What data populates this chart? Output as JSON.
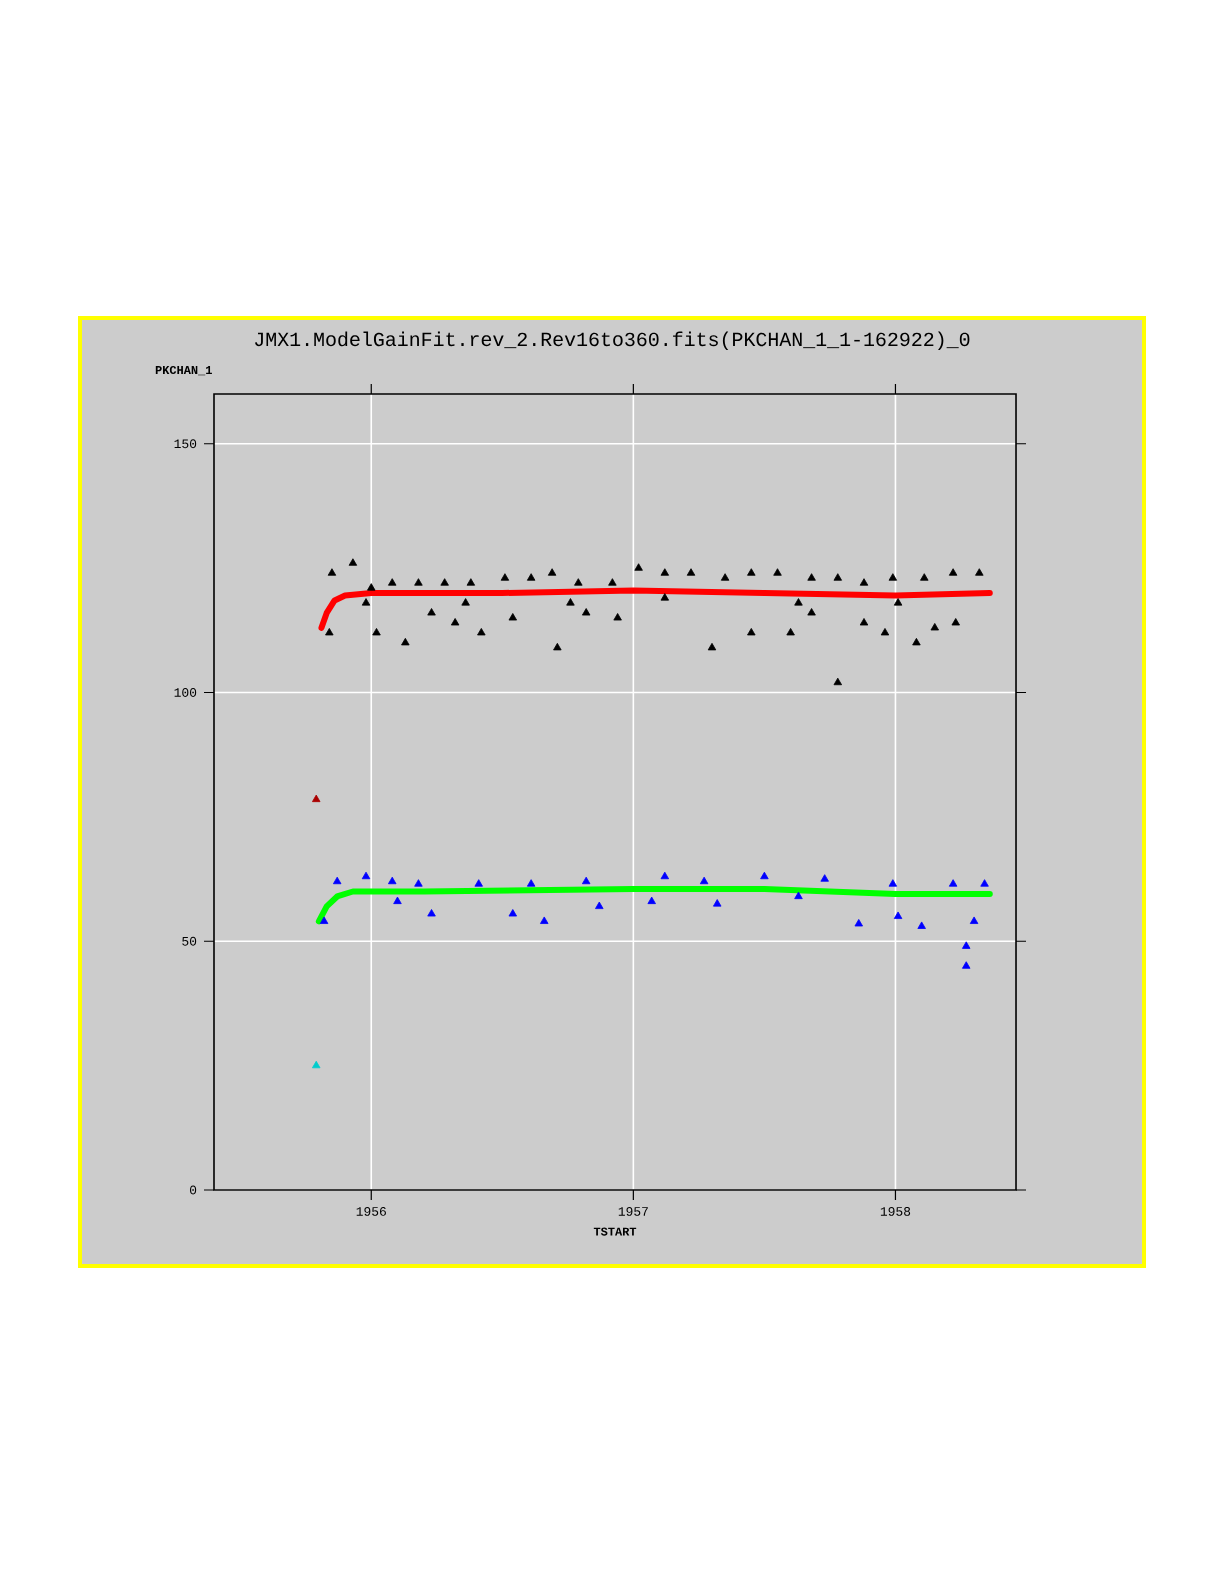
{
  "chart_data": {
    "type": "scatter",
    "title": "JMX1.ModelGainFit.rev_2.Rev16to360.fits(PKCHAN_1_1-162922)_0",
    "xlabel": "TSTART",
    "ylabel": "PKCHAN_1",
    "xlim": [
      1955.4,
      1958.46
    ],
    "ylim": [
      0,
      160
    ],
    "xticks": [
      1956,
      1957,
      1958
    ],
    "yticks": [
      0,
      50,
      100,
      150
    ],
    "grid": true,
    "marker": "triangle",
    "series": [
      {
        "color": "#000000",
        "x": [
          1955.84,
          1955.85,
          1955.93,
          1955.98,
          1956.0,
          1956.02,
          1956.08,
          1956.13,
          1956.18,
          1956.23,
          1956.28,
          1956.32,
          1956.36,
          1956.38,
          1956.42,
          1956.51,
          1956.54,
          1956.61,
          1956.69,
          1956.71,
          1956.76,
          1956.79,
          1956.82,
          1956.92,
          1956.94,
          1957.02,
          1957.12,
          1957.12,
          1957.22,
          1957.3,
          1957.35,
          1957.45,
          1957.45,
          1957.55,
          1957.6,
          1957.63,
          1957.68,
          1957.68,
          1957.78,
          1957.78,
          1957.88,
          1957.88,
          1957.96,
          1957.99,
          1958.01,
          1958.08,
          1958.11,
          1958.15,
          1958.22,
          1958.23,
          1958.32
        ],
        "values": [
          112,
          124,
          126,
          118,
          121,
          112,
          122,
          110,
          122,
          116,
          122,
          114,
          118,
          122,
          112,
          123,
          115,
          123,
          124,
          109,
          118,
          122,
          116,
          122,
          115,
          125,
          124,
          119,
          124,
          109,
          123,
          124,
          112,
          124,
          112,
          118,
          123,
          116,
          123,
          102,
          122,
          114,
          112,
          123,
          118,
          110,
          123,
          113,
          124,
          114,
          124
        ]
      },
      {
        "type": "line",
        "marker": "none",
        "color": "#ff0000",
        "x": [
          1955.81,
          1955.83,
          1955.86,
          1955.9,
          1956.0,
          1956.5,
          1957.0,
          1957.5,
          1958.0,
          1958.36
        ],
        "values": [
          113,
          116,
          118.5,
          119.5,
          120,
          120,
          120.5,
          120,
          119.5,
          120
        ]
      },
      {
        "color": "#0000ff",
        "x": [
          1955.82,
          1955.87,
          1955.98,
          1956.08,
          1956.1,
          1956.18,
          1956.23,
          1956.41,
          1956.54,
          1956.61,
          1956.66,
          1956.82,
          1956.87,
          1957.07,
          1957.12,
          1957.27,
          1957.32,
          1957.5,
          1957.63,
          1957.73,
          1957.86,
          1957.99,
          1958.01,
          1958.1,
          1958.22,
          1958.27,
          1958.27,
          1958.3,
          1958.34
        ],
        "values": [
          54,
          62,
          63,
          62,
          58,
          61.5,
          55.5,
          61.5,
          55.5,
          61.5,
          54,
          62,
          57,
          58,
          63,
          62,
          57.5,
          63,
          59,
          62.5,
          53.5,
          61.5,
          55,
          53,
          61.5,
          49,
          45,
          54,
          61.5
        ]
      },
      {
        "type": "line",
        "marker": "none",
        "color": "#00ff00",
        "x": [
          1955.8,
          1955.83,
          1955.87,
          1955.93,
          1956.2,
          1957.0,
          1957.5,
          1958.0,
          1958.36
        ],
        "values": [
          54,
          57,
          59,
          60,
          60,
          60.5,
          60.5,
          59.5,
          59.5
        ]
      },
      {
        "color": "#aa0000",
        "x": [
          1955.79
        ],
        "values": [
          78.5
        ]
      },
      {
        "color": "#00cccc",
        "x": [
          1955.79
        ],
        "values": [
          25
        ]
      }
    ]
  }
}
